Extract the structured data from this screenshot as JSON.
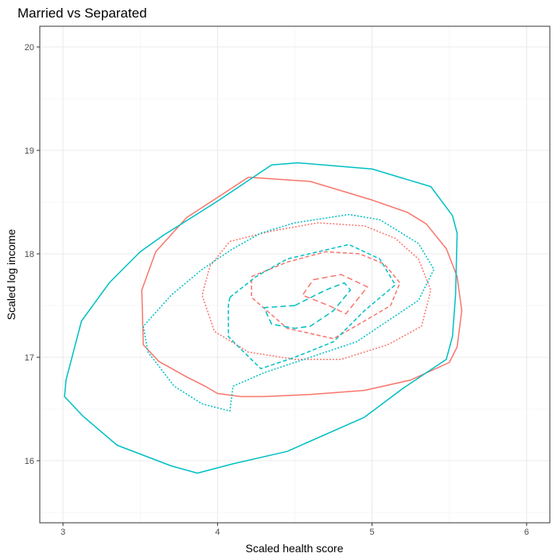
{
  "chart_data": {
    "type": "contour",
    "title": "Married vs Separated",
    "xlabel": "Scaled health score",
    "ylabel": "Scaled log income",
    "xlim": [
      2.85,
      6.15
    ],
    "ylim": [
      15.4,
      20.2
    ],
    "x_ticks": [
      3,
      4,
      5,
      6
    ],
    "y_ticks": [
      16,
      17,
      18,
      19,
      20
    ],
    "grid": true,
    "legend": "none",
    "colors": {
      "red": "#F8766D",
      "teal": "#00BFC4"
    },
    "series": [
      {
        "color": "red",
        "dash": "solid",
        "points": [
          [
            4.2,
            18.74
          ],
          [
            4.6,
            18.7
          ],
          [
            5.0,
            18.52
          ],
          [
            5.23,
            18.4
          ],
          [
            5.35,
            18.29
          ],
          [
            5.48,
            18.05
          ],
          [
            5.55,
            17.78
          ],
          [
            5.58,
            17.45
          ],
          [
            5.55,
            17.1
          ],
          [
            5.5,
            16.95
          ],
          [
            5.25,
            16.78
          ],
          [
            4.95,
            16.68
          ],
          [
            4.6,
            16.64
          ],
          [
            4.3,
            16.62
          ],
          [
            4.15,
            16.62
          ],
          [
            4.0,
            16.65
          ],
          [
            3.92,
            16.72
          ],
          [
            3.8,
            16.81
          ],
          [
            3.62,
            16.96
          ],
          [
            3.52,
            17.12
          ],
          [
            3.51,
            17.65
          ],
          [
            3.6,
            18.02
          ],
          [
            3.8,
            18.35
          ],
          [
            4.2,
            18.74
          ]
        ]
      },
      {
        "color": "teal",
        "dash": "solid",
        "points": [
          [
            4.35,
            18.86
          ],
          [
            4.52,
            18.88
          ],
          [
            5.0,
            18.82
          ],
          [
            5.38,
            18.65
          ],
          [
            5.52,
            18.37
          ],
          [
            5.55,
            18.2
          ],
          [
            5.54,
            17.6
          ],
          [
            5.52,
            17.2
          ],
          [
            5.48,
            16.98
          ],
          [
            5.2,
            16.7
          ],
          [
            4.95,
            16.42
          ],
          [
            4.45,
            16.09
          ],
          [
            4.1,
            15.97
          ],
          [
            3.87,
            15.88
          ],
          [
            3.7,
            15.95
          ],
          [
            3.35,
            16.15
          ],
          [
            3.13,
            16.43
          ],
          [
            3.01,
            16.62
          ],
          [
            3.02,
            16.78
          ],
          [
            3.12,
            17.35
          ],
          [
            3.3,
            17.72
          ],
          [
            3.5,
            18.02
          ],
          [
            3.65,
            18.18
          ],
          [
            3.8,
            18.32
          ],
          [
            4.0,
            18.51
          ],
          [
            4.35,
            18.86
          ]
        ]
      },
      {
        "color": "red",
        "dash": "dotted",
        "points": [
          [
            4.08,
            18.12
          ],
          [
            4.35,
            18.22
          ],
          [
            4.65,
            18.3
          ],
          [
            4.95,
            18.27
          ],
          [
            5.15,
            18.15
          ],
          [
            5.3,
            17.95
          ],
          [
            5.38,
            17.65
          ],
          [
            5.32,
            17.3
          ],
          [
            5.1,
            17.12
          ],
          [
            4.8,
            16.98
          ],
          [
            4.5,
            16.98
          ],
          [
            4.2,
            17.05
          ],
          [
            3.98,
            17.25
          ],
          [
            3.9,
            17.6
          ],
          [
            3.95,
            17.88
          ],
          [
            4.08,
            18.12
          ]
        ]
      },
      {
        "color": "teal",
        "dash": "dotted",
        "points": [
          [
            4.28,
            18.2
          ],
          [
            4.5,
            18.3
          ],
          [
            4.85,
            18.38
          ],
          [
            5.05,
            18.33
          ],
          [
            5.3,
            18.1
          ],
          [
            5.4,
            17.85
          ],
          [
            5.3,
            17.55
          ],
          [
            5.1,
            17.35
          ],
          [
            4.9,
            17.15
          ],
          [
            4.6,
            17.0
          ],
          [
            4.3,
            16.85
          ],
          [
            4.1,
            16.72
          ],
          [
            4.08,
            16.48
          ],
          [
            3.9,
            16.55
          ],
          [
            3.72,
            16.72
          ],
          [
            3.55,
            17.05
          ],
          [
            3.52,
            17.3
          ],
          [
            3.7,
            17.6
          ],
          [
            3.9,
            17.85
          ],
          [
            4.1,
            18.05
          ],
          [
            4.28,
            18.2
          ]
        ]
      },
      {
        "color": "red",
        "dash": "dashed",
        "points": [
          [
            4.22,
            17.78
          ],
          [
            4.45,
            17.92
          ],
          [
            4.7,
            18.02
          ],
          [
            4.92,
            18.0
          ],
          [
            5.08,
            17.9
          ],
          [
            5.18,
            17.72
          ],
          [
            5.12,
            17.5
          ],
          [
            4.95,
            17.35
          ],
          [
            4.75,
            17.18
          ],
          [
            4.45,
            17.28
          ],
          [
            4.22,
            17.58
          ],
          [
            4.22,
            17.78
          ]
        ]
      },
      {
        "color": "teal",
        "dash": "dashed",
        "points": [
          [
            4.08,
            17.58
          ],
          [
            4.25,
            17.78
          ],
          [
            4.45,
            17.95
          ],
          [
            4.65,
            18.02
          ],
          [
            4.85,
            18.09
          ],
          [
            5.05,
            17.95
          ],
          [
            5.15,
            17.7
          ],
          [
            4.95,
            17.45
          ],
          [
            4.75,
            17.15
          ],
          [
            4.5,
            17.0
          ],
          [
            4.28,
            16.89
          ],
          [
            4.15,
            17.08
          ],
          [
            4.07,
            17.2
          ],
          [
            4.07,
            17.5
          ],
          [
            4.08,
            17.58
          ]
        ]
      },
      {
        "color": "red",
        "dash": "longdash",
        "points": [
          [
            4.62,
            17.75
          ],
          [
            4.8,
            17.8
          ],
          [
            4.97,
            17.68
          ],
          [
            4.9,
            17.55
          ],
          [
            4.83,
            17.42
          ],
          [
            4.72,
            17.5
          ],
          [
            4.55,
            17.6
          ],
          [
            4.62,
            17.75
          ]
        ]
      },
      {
        "color": "teal",
        "dash": "longdash",
        "points": [
          [
            4.5,
            17.5
          ],
          [
            4.7,
            17.65
          ],
          [
            4.82,
            17.72
          ],
          [
            4.86,
            17.65
          ],
          [
            4.75,
            17.45
          ],
          [
            4.6,
            17.3
          ],
          [
            4.5,
            17.28
          ],
          [
            4.35,
            17.32
          ],
          [
            4.3,
            17.48
          ],
          [
            4.5,
            17.5
          ]
        ]
      }
    ]
  }
}
